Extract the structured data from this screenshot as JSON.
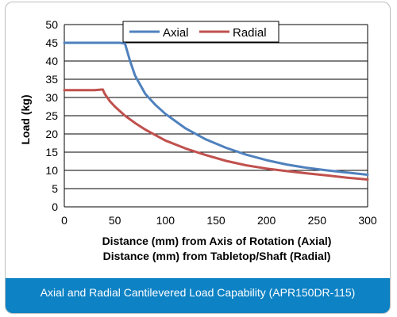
{
  "caption": "Axial and Radial Cantilevered Load Capability (APR150DR-115)",
  "colors": {
    "axial": "#4f81bd",
    "radial": "#c0504d",
    "caption_bg": "#0d82c4",
    "grid": "#000000"
  },
  "chart_data": {
    "type": "line",
    "title": "",
    "ylabel": "Load (kg)",
    "xlabel_lines": [
      "Distance (mm) from Axis of Rotation (Axial)",
      "Distance (mm) from Tabletop/Shaft (Radial)"
    ],
    "xlim": [
      0,
      300
    ],
    "ylim": [
      0,
      50
    ],
    "x_ticks": [
      0,
      50,
      100,
      150,
      200,
      250,
      300
    ],
    "y_ticks": [
      0,
      5,
      10,
      15,
      20,
      25,
      30,
      35,
      40,
      45,
      50
    ],
    "grid": "horizontal",
    "legend": "top-center",
    "series": [
      {
        "name": "Axial",
        "x": [
          0,
          55,
          60,
          65,
          70,
          80,
          90,
          100,
          120,
          140,
          160,
          180,
          200,
          220,
          240,
          260,
          280,
          300
        ],
        "values": [
          45,
          45,
          44.8,
          40,
          36,
          31,
          28,
          25.5,
          21.5,
          18.5,
          16.2,
          14.3,
          12.8,
          11.6,
          10.7,
          10,
          9.4,
          8.8
        ]
      },
      {
        "name": "Radial",
        "x": [
          0,
          30,
          38,
          40,
          45,
          50,
          60,
          70,
          80,
          100,
          120,
          140,
          160,
          180,
          200,
          220,
          240,
          260,
          280,
          300
        ],
        "values": [
          32,
          32,
          32.2,
          31,
          29,
          27.5,
          25,
          23,
          21.2,
          18.2,
          16,
          14.2,
          12.6,
          11.4,
          10.5,
          9.8,
          9.2,
          8.6,
          8.0,
          7.5
        ]
      }
    ]
  }
}
